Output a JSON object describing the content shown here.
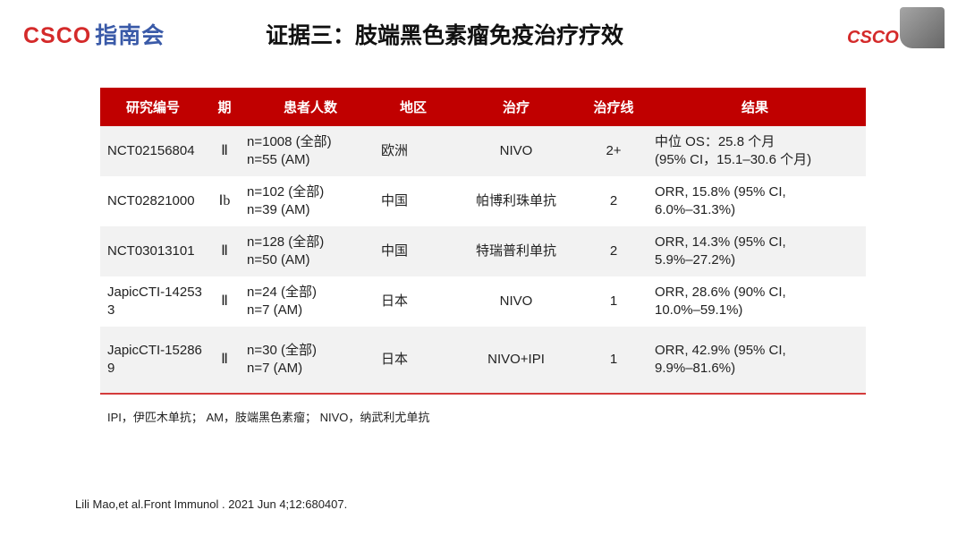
{
  "header": {
    "logo_left_csco": "CSCO",
    "logo_left_text": "指南会",
    "title": "证据三：肢端黑色素瘤免疫治疗疗效",
    "logo_right_text": "CSCO"
  },
  "table": {
    "headers": [
      "研究编号",
      "期",
      "患者人数",
      "地区",
      "治疗",
      "治疗线",
      "结果"
    ],
    "rows": [
      {
        "id": "NCT02156804",
        "phase": "Ⅱ",
        "patients_all": "n=1008 (全部)",
        "patients_am": "n=55 (AM)",
        "region": "欧洲",
        "treatment": "NIVO",
        "line": "2+",
        "result1": "中位 OS：25.8 个月",
        "result2": "(95% CI，15.1–30.6 个月)"
      },
      {
        "id": "NCT02821000",
        "phase": "Ⅰb",
        "patients_all": "n=102 (全部)",
        "patients_am": "n=39 (AM)",
        "region": "中国",
        "treatment": "帕博利珠单抗",
        "line": "2",
        "result1": "ORR, 15.8% (95% CI,",
        "result2": "6.0%–31.3%)"
      },
      {
        "id": "NCT03013101",
        "phase": "Ⅱ",
        "patients_all": "n=128 (全部)",
        "patients_am": "n=50 (AM)",
        "region": "中国",
        "treatment": "特瑞普利单抗",
        "line": "2",
        "result1": "ORR, 14.3% (95% CI,",
        "result2": "5.9%–27.2%)"
      },
      {
        "id": "JapicCTI-142533",
        "phase": "Ⅱ",
        "patients_all": "n=24 (全部)",
        "patients_am": "n=7 (AM)",
        "region": "日本",
        "treatment": "NIVO",
        "line": "1",
        "result1": "ORR, 28.6% (90% CI,",
        "result2": "10.0%–59.1%)"
      },
      {
        "id": "JapicCTI-152869",
        "phase": "Ⅱ",
        "patients_all": "n=30 (全部)",
        "patients_am": "n=7 (AM)",
        "region": "日本",
        "treatment": "NIVO+IPI",
        "line": "1",
        "result1": "ORR, 42.9% (95% CI,",
        "result2": "9.9%–81.6%)"
      }
    ]
  },
  "footnote": "IPI，伊匹木单抗； AM，肢端黑色素瘤； NIVO，纳武利尤单抗",
  "reference": "Lili Mao,et al.Front Immunol . 2021 Jun 4;12:680407.",
  "colors": {
    "header_bg": "#c00000",
    "row_alt": "#f2f2f2",
    "brand_red": "#d42a2a",
    "brand_blue": "#3a5aa8"
  }
}
